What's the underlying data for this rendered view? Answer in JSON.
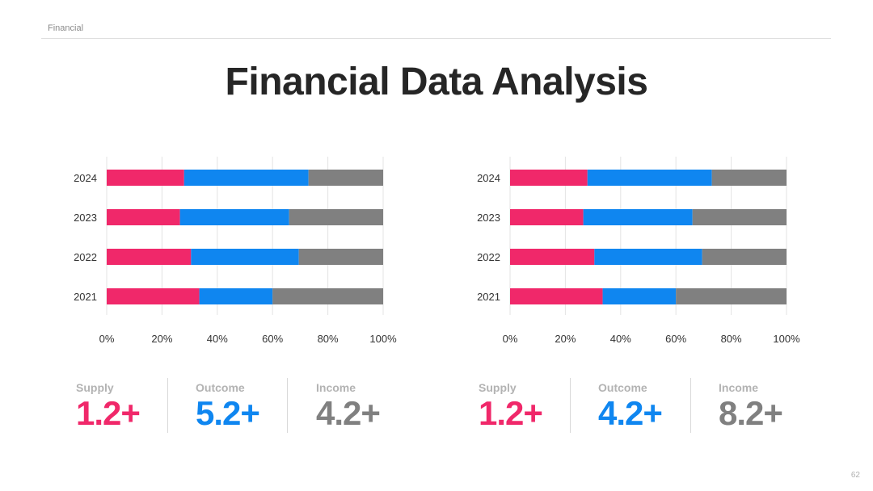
{
  "header": {
    "label": "Financial"
  },
  "title": "Financial Data Analysis",
  "page_number": "62",
  "colors": {
    "supply": "#f0286a",
    "outcome": "#0f86f0",
    "income": "#808080"
  },
  "chart_data": [
    {
      "type": "bar",
      "orientation": "horizontal",
      "stacked": "percent",
      "categories": [
        "2024",
        "2023",
        "2022",
        "2021"
      ],
      "series": [
        {
          "values": [
            28,
            26.5,
            30.5,
            33.5
          ]
        },
        {
          "values": [
            45,
            39.5,
            39,
            26.5
          ]
        },
        {
          "values": [
            27,
            34,
            30.5,
            40
          ]
        }
      ],
      "xlim": [
        0,
        100
      ],
      "xticks": [
        "0%",
        "20%",
        "40%",
        "60%",
        "80%",
        "100%"
      ],
      "grid": true
    },
    {
      "type": "bar",
      "orientation": "horizontal",
      "stacked": "percent",
      "categories": [
        "2024",
        "2023",
        "2022",
        "2021"
      ],
      "series": [
        {
          "values": [
            28,
            26.5,
            30.5,
            33.5
          ]
        },
        {
          "values": [
            45,
            39.5,
            39,
            26.5
          ]
        },
        {
          "values": [
            27,
            34,
            30.5,
            40
          ]
        }
      ],
      "xlim": [
        0,
        100
      ],
      "xticks": [
        "0%",
        "20%",
        "40%",
        "60%",
        "80%",
        "100%"
      ],
      "grid": true
    }
  ],
  "stats": [
    [
      {
        "label": "Supply",
        "value": "1.2+",
        "color": "#f0286a"
      },
      {
        "label": "Outcome",
        "value": "5.2+",
        "color": "#0f86f0"
      },
      {
        "label": "Income",
        "value": "4.2+",
        "color": "#808080"
      }
    ],
    [
      {
        "label": "Supply",
        "value": "1.2+",
        "color": "#f0286a"
      },
      {
        "label": "Outcome",
        "value": "4.2+",
        "color": "#0f86f0"
      },
      {
        "label": "Income",
        "value": "8.2+",
        "color": "#808080"
      }
    ]
  ]
}
